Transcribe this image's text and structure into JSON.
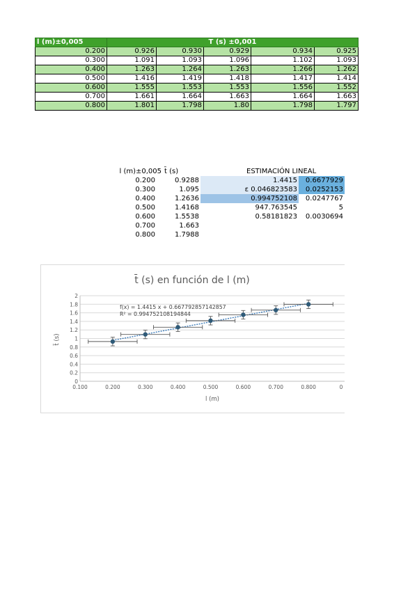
{
  "table": {
    "header_l": "l (m)±0,005",
    "header_t": "T (s) ±0,001",
    "rows": [
      {
        "l": "0.200",
        "t": [
          "0.926",
          "0.930",
          "0.929",
          "0.934",
          "0.925"
        ]
      },
      {
        "l": "0.300",
        "t": [
          "1.091",
          "1.093",
          "1.096",
          "1.102",
          "1.093"
        ]
      },
      {
        "l": "0.400",
        "t": [
          "1.263",
          "1.264",
          "1.263",
          "1.266",
          "1.262"
        ]
      },
      {
        "l": "0.500",
        "t": [
          "1.416",
          "1.419",
          "1.418",
          "1.417",
          "1.414"
        ]
      },
      {
        "l": "0.600",
        "t": [
          "1.555",
          "1.553",
          "1.553",
          "1.556",
          "1.552"
        ]
      },
      {
        "l": "0.700",
        "t": [
          "1.661",
          "1.664",
          "1.663",
          "1.664",
          "1.663"
        ]
      },
      {
        "l": "0.800",
        "t": [
          "1.801",
          "1.798",
          "1.80",
          "1.798",
          "1.797"
        ]
      }
    ]
  },
  "averages": {
    "header_l": "l (m)±0,005",
    "header_t": "t̄ (s)",
    "rows": [
      {
        "l": "0.200",
        "t": "0.9288"
      },
      {
        "l": "0.300",
        "t": "1.095"
      },
      {
        "l": "0.400",
        "t": "1.2636"
      },
      {
        "l": "0.500",
        "t": "1.4168"
      },
      {
        "l": "0.600",
        "t": "1.5538"
      },
      {
        "l": "0.700",
        "t": "1.663"
      },
      {
        "l": "0.800",
        "t": "1.7988"
      }
    ]
  },
  "estimation": {
    "title": "ESTIMACIÓN LINEAL",
    "rows": [
      {
        "a": "1.4415",
        "b": "0.6677929"
      },
      {
        "a": "ε 0.046823583",
        "b": "0.0252153"
      },
      {
        "a": "0.994752108",
        "b": "0.0247767"
      },
      {
        "a": "947.763545",
        "b": "5"
      },
      {
        "a": "0.58181823",
        "b": "0.0030694"
      }
    ]
  },
  "chart_data": {
    "type": "scatter",
    "title": "t̄ (s) en función de l (m)",
    "xlabel": "l (m)",
    "ylabel": "t̄ (s)",
    "xlim": [
      0.1,
      0.9
    ],
    "ylim": [
      0,
      2
    ],
    "x_ticks": [
      "0.100",
      "0.200",
      "0.300",
      "0.400",
      "0.500",
      "0.600",
      "0.700",
      "0.800",
      "0"
    ],
    "y_ticks": [
      "0",
      "0.2",
      "0.4",
      "0.6",
      "0.8",
      "1",
      "1.2",
      "1.4",
      "1.6",
      "1.8",
      "2"
    ],
    "grid": true,
    "x": [
      0.2,
      0.3,
      0.4,
      0.5,
      0.6,
      0.7,
      0.8
    ],
    "y": [
      0.9288,
      1.095,
      1.2636,
      1.4168,
      1.5538,
      1.663,
      1.7988
    ],
    "x_error": 0.075,
    "y_error": 0.1,
    "trendline": {
      "slope": 1.4415,
      "intercept": 0.667792857142857
    },
    "equation": "f(x) = 1.4415 x + 0.667792857142857",
    "r_squared": "R² = 0.994752108194844",
    "marker_color": "#2e5a78",
    "trend_color": "#3a7ab8",
    "error_color": "#595959"
  }
}
